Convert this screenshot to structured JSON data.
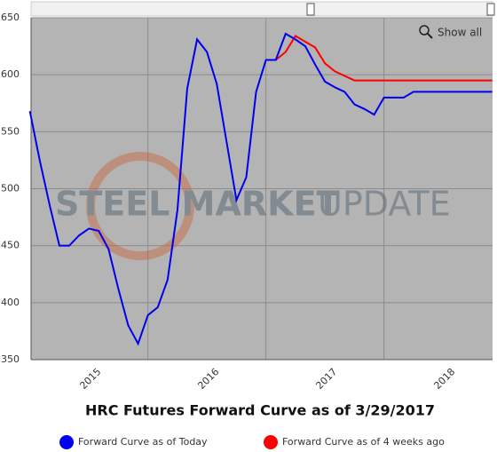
{
  "chart_data": {
    "type": "line",
    "title": "HRC Futures Forward Curve as of 3/29/2017",
    "button": "Show all",
    "watermark": [
      "STEEL MARKET",
      "UPDATE"
    ],
    "x": [
      2014.5,
      2014.5833,
      2014.6667,
      2014.75,
      2014.8333,
      2014.9167,
      2015.0,
      2015.0833,
      2015.1667,
      2015.25,
      2015.3333,
      2015.4167,
      2015.5,
      2015.5833,
      2015.6667,
      2015.75,
      2015.8333,
      2015.9167,
      2016.0,
      2016.0833,
      2016.1667,
      2016.25,
      2016.3333,
      2016.4167,
      2016.5,
      2016.5833,
      2016.6667,
      2016.75,
      2016.8333,
      2016.9167,
      2017.0,
      2017.0833,
      2017.1667,
      2017.25,
      2017.3333,
      2017.4167,
      2017.5,
      2017.5833,
      2017.6667,
      2017.75,
      2017.8333,
      2017.9167,
      2018.0,
      2018.0833,
      2018.1667,
      2018.25,
      2018.3333,
      2018.4167
    ],
    "series": [
      {
        "name": "Forward Curve as of Today",
        "color": "#0000ee",
        "values": [
          568,
          525,
          486,
          450,
          450,
          459,
          465,
          463,
          447,
          412,
          380,
          364,
          389,
          396,
          420,
          481,
          588,
          631,
          620,
          592,
          541,
          490,
          510,
          585,
          613,
          613,
          636,
          631,
          625,
          609,
          594,
          589,
          585,
          574,
          570,
          565,
          580,
          580,
          580,
          585,
          585,
          585,
          585,
          585,
          585,
          585,
          585,
          585
        ]
      },
      {
        "name": "Forward Curve as of 4 weeks ago",
        "color": "#ff0000",
        "values": [
          null,
          null,
          null,
          null,
          null,
          null,
          null,
          null,
          null,
          null,
          null,
          null,
          null,
          null,
          null,
          null,
          null,
          null,
          null,
          null,
          null,
          null,
          null,
          null,
          null,
          613,
          620,
          634,
          629,
          624,
          610,
          603,
          599,
          595,
          595,
          595,
          595,
          595,
          595,
          595,
          595,
          595,
          595,
          595,
          595,
          595,
          595,
          595
        ]
      }
    ],
    "xlim": [
      2014.51,
      2018.42
    ],
    "xticks": [
      2015,
      2016,
      2017,
      2018
    ],
    "xgrid": [
      2015.5,
      2016.5,
      2017.5
    ],
    "ylim": [
      350,
      650
    ],
    "yticks": [
      350,
      400,
      450,
      500,
      550,
      600,
      650
    ],
    "grid": true,
    "plot_background": "#b4b4b4"
  }
}
